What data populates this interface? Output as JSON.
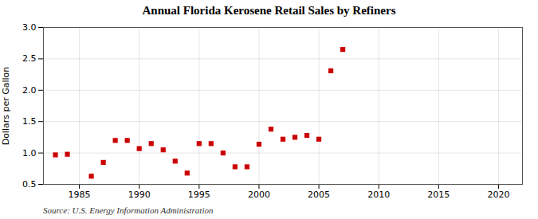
{
  "chart_data": {
    "type": "scatter",
    "title": "Annual Florida Kerosene Retail Sales by Refiners",
    "ylabel": "Dollars per Gallon",
    "source": "Source: U.S. Energy Information Administration",
    "x": [
      1983,
      1984,
      1986,
      1987,
      1988,
      1989,
      1990,
      1991,
      1992,
      1993,
      1994,
      1995,
      1996,
      1997,
      1998,
      1999,
      2000,
      2001,
      2002,
      2003,
      2004,
      2005,
      2006,
      2007
    ],
    "values": [
      0.97,
      0.98,
      0.63,
      0.85,
      1.2,
      1.2,
      1.07,
      1.15,
      1.05,
      0.87,
      0.68,
      1.15,
      1.15,
      1.0,
      0.78,
      0.78,
      1.14,
      1.38,
      1.22,
      1.25,
      1.28,
      1.22,
      2.31,
      2.65
    ],
    "color": "#cc0000",
    "marker": "square",
    "xlim": [
      1982,
      2022
    ],
    "ylim": [
      0.5,
      3.0
    ],
    "xticks": [
      1985,
      1990,
      1995,
      2000,
      2005,
      2010,
      2015,
      2020
    ],
    "yticks": [
      0.5,
      {
        "value": 1,
        "label": "1.0"
      },
      1.5,
      {
        "value": 2,
        "label": "2.0"
      },
      2.5,
      {
        "value": 3,
        "label": "3.0"
      }
    ],
    "grid": true
  }
}
